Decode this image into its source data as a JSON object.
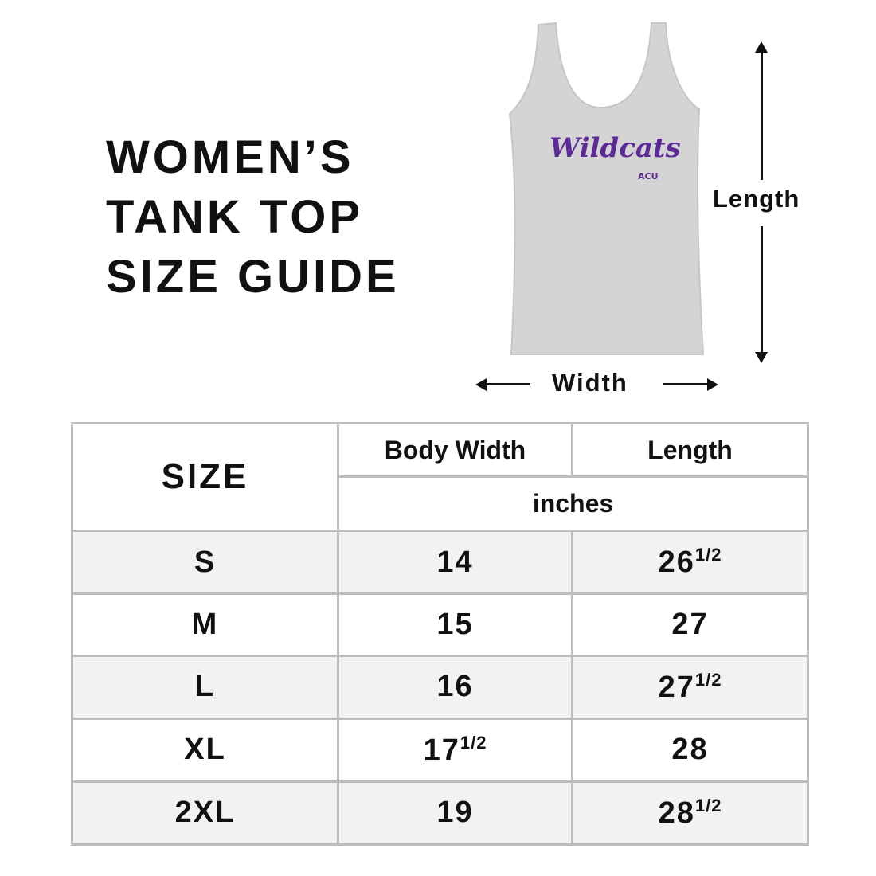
{
  "title": {
    "line1": "WOMEN’S",
    "line2": "TANK TOP",
    "line3": "SIZE GUIDE"
  },
  "garment": {
    "print_text": "Wildcats",
    "logo_text": "ACU",
    "color": "#d4d4d4",
    "print_color": "#5b2a96"
  },
  "dimensions": {
    "length_label": "Length",
    "width_label": "Width"
  },
  "table": {
    "size_header": "SIZE",
    "columns": [
      "Body Width",
      "Length"
    ],
    "unit": "inches",
    "rows": [
      {
        "size": "S",
        "width": "14",
        "width_frac": "",
        "length": "26",
        "length_frac": "1/2"
      },
      {
        "size": "M",
        "width": "15",
        "width_frac": "",
        "length": "27",
        "length_frac": ""
      },
      {
        "size": "L",
        "width": "16",
        "width_frac": "",
        "length": "27",
        "length_frac": "1/2"
      },
      {
        "size": "XL",
        "width": "17",
        "width_frac": "1/2",
        "length": "28",
        "length_frac": ""
      },
      {
        "size": "2XL",
        "width": "19",
        "width_frac": "",
        "length": "28",
        "length_frac": "1/2"
      }
    ]
  }
}
